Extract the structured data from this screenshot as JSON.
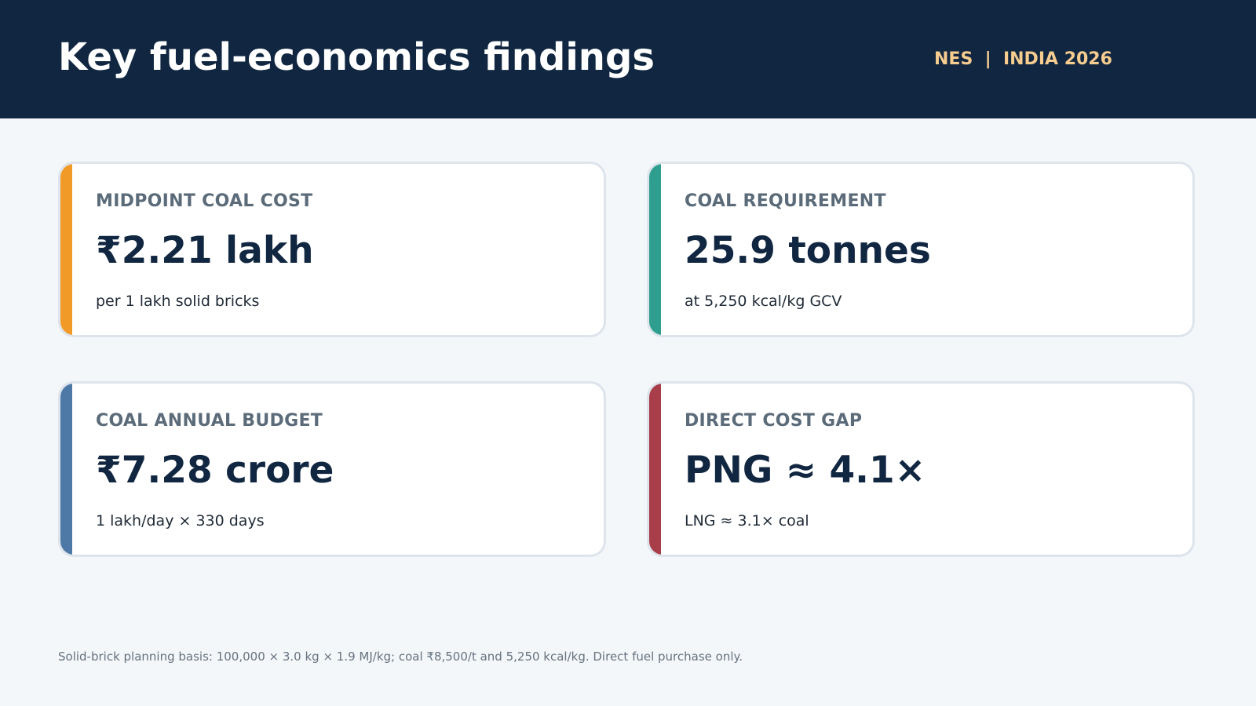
{
  "header": {
    "title": "Key fuel-economics findings",
    "tag": "NES  |  INDIA 2026"
  },
  "cards": [
    {
      "label": "MIDPOINT COAL COST",
      "value": "₹2.21 lakh",
      "sub": "per 1 lakh solid bricks",
      "accent_color": "#f29a28"
    },
    {
      "label": "COAL REQUIREMENT",
      "value": "25.9 tonnes",
      "sub": "at 5,250 kcal/kg GCV",
      "accent_color": "#2f9e8e"
    },
    {
      "label": "COAL ANNUAL BUDGET",
      "value": "₹7.28 crore",
      "sub": "1 lakh/day × 330 days",
      "accent_color": "#4e78a6"
    },
    {
      "label": "DIRECT COST GAP",
      "value": "PNG ≈ 4.1×",
      "sub": "LNG ≈ 3.1× coal",
      "accent_color": "#a83e4a"
    }
  ],
  "footnote": "Solid-brick planning basis: 100,000 × 3.0 kg × 1.9 MJ/kg; coal ₹8,500/t and 5,250 kcal/kg. Direct fuel purchase only.",
  "colors": {
    "header_bg": "#112741",
    "page_bg": "#f4f7fa",
    "tag": "#f7cc8f"
  }
}
